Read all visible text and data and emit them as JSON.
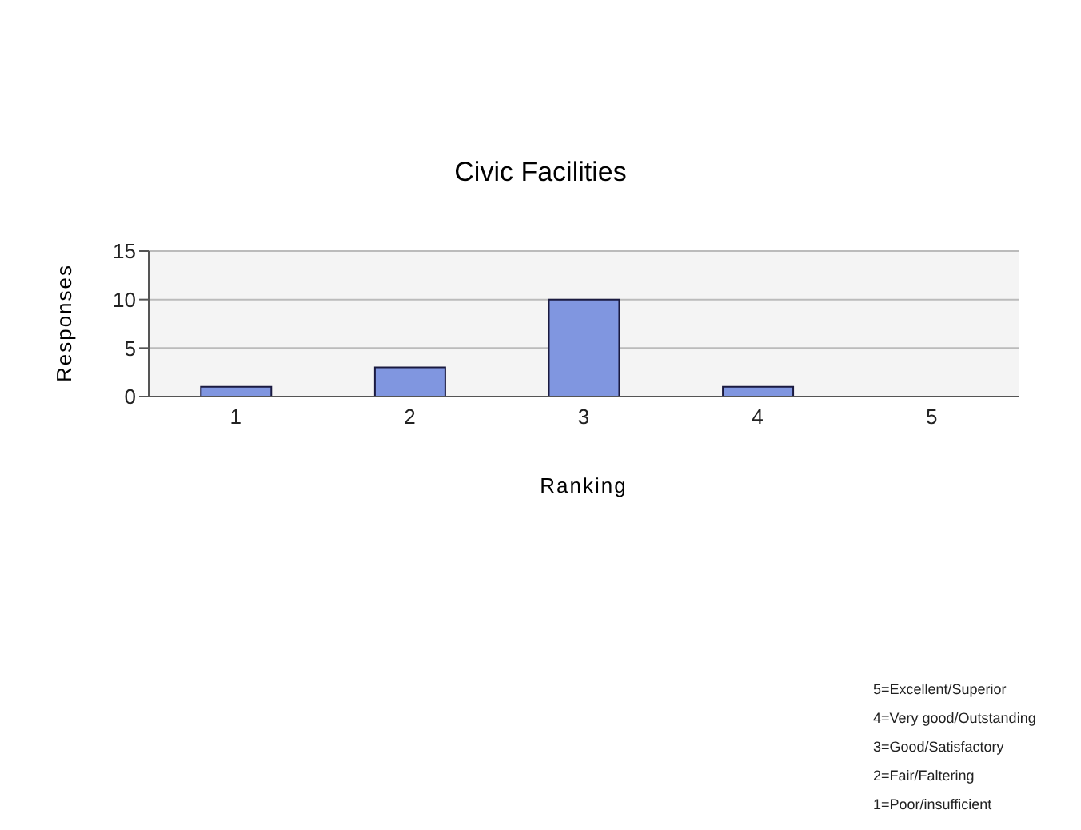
{
  "chart_data": {
    "type": "bar",
    "title": "Civic Facilities",
    "xlabel": "Ranking",
    "ylabel": "Responses",
    "categories": [
      "1",
      "2",
      "3",
      "4",
      "5"
    ],
    "values": [
      1,
      3,
      10,
      1,
      0
    ],
    "color": "#8096e0",
    "ylim": [
      0,
      15
    ],
    "yticks": [
      0,
      5,
      10,
      15
    ],
    "grid": "y",
    "annotations": [
      "5=Excellent/Superior",
      "4=Very good/Outstanding",
      "3=Good/Satisfactory",
      "2=Fair/Faltering",
      "1=Poor/insufficient"
    ]
  }
}
